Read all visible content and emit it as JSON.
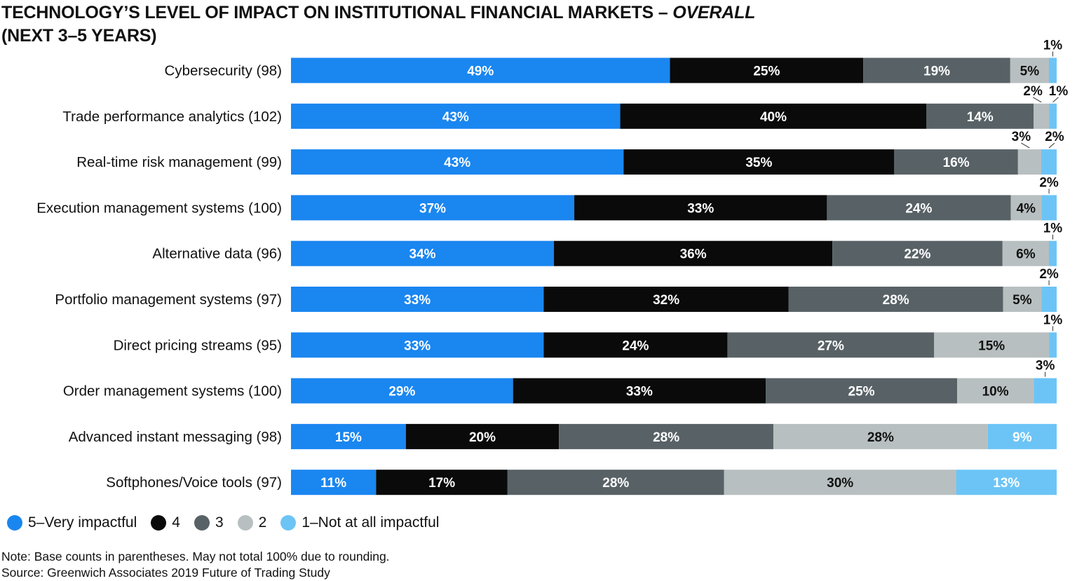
{
  "title": {
    "line1_main": "TECHNOLOGY’S LEVEL OF IMPACT ON INSTITUTIONAL FINANCIAL MARKETS – ",
    "line1_emph": "OVERALL",
    "line2": "(NEXT 3–5 YEARS)"
  },
  "chart_data": {
    "type": "bar",
    "orientation": "horizontal",
    "stacked": true,
    "categories": [
      "Cybersecurity (98)",
      "Trade performance analytics (102)",
      "Real-time risk management (99)",
      "Execution management systems (100)",
      "Alternative data (96)",
      "Portfolio management systems (97)",
      "Direct pricing streams (95)",
      "Order management systems (100)",
      "Advanced instant messaging (98)",
      "Softphones/Voice tools (97)"
    ],
    "series": [
      {
        "name": "5–Very impactful",
        "color": "#1a86f0",
        "label_color": "#ffffff",
        "values": [
          49,
          43,
          43,
          37,
          34,
          33,
          33,
          29,
          15,
          11
        ]
      },
      {
        "name": "4",
        "color": "#0a0a0a",
        "label_color": "#ffffff",
        "values": [
          25,
          40,
          35,
          33,
          36,
          32,
          24,
          33,
          20,
          17
        ]
      },
      {
        "name": "3",
        "color": "#586266",
        "label_color": "#ffffff",
        "values": [
          19,
          14,
          16,
          24,
          22,
          28,
          27,
          25,
          28,
          28
        ]
      },
      {
        "name": "2",
        "color": "#b8bfc0",
        "label_color": "#111111",
        "values": [
          5,
          2,
          3,
          4,
          6,
          5,
          15,
          10,
          28,
          30
        ]
      },
      {
        "name": "1–Not at all impactful",
        "color": "#6cc4f6",
        "label_color": "#ffffff",
        "values": [
          1,
          1,
          2,
          2,
          1,
          2,
          1,
          3,
          9,
          13
        ]
      }
    ],
    "value_suffix": "%",
    "xlim": [
      0,
      100
    ],
    "legend_position": "bottom-left"
  },
  "notes": {
    "line1": "Note: Base counts in parentheses. May not total 100% due to rounding.",
    "line2": "Source: Greenwich Associates 2019 Future of Trading Study"
  }
}
